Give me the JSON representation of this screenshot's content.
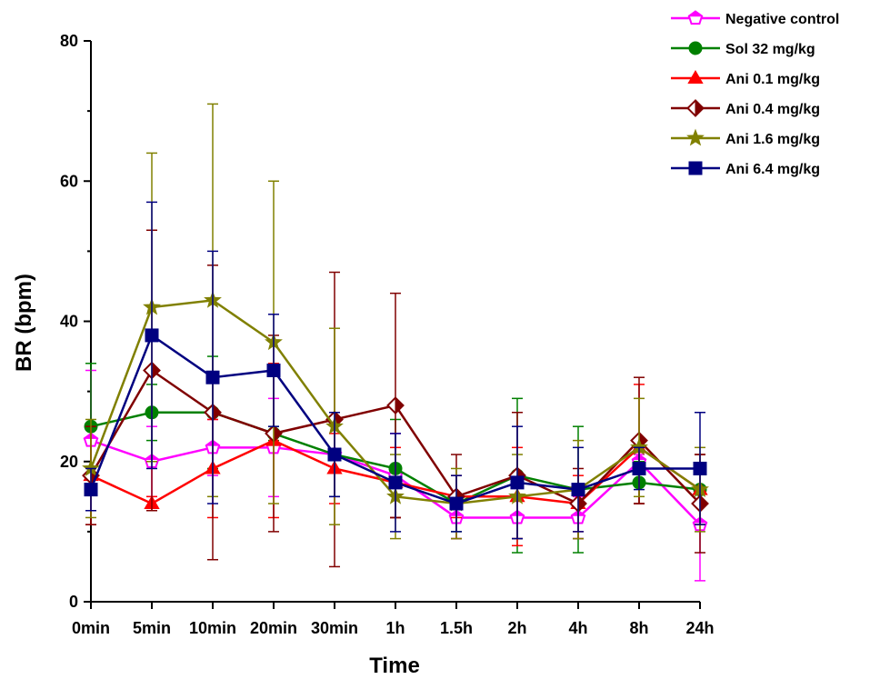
{
  "chart_data": {
    "type": "line",
    "title": "",
    "xlabel": "Time",
    "ylabel": "BR (bpm)",
    "ylim": [
      0,
      80
    ],
    "yticks": [
      "0",
      "20",
      "40",
      "60",
      "80"
    ],
    "categories": [
      "0min",
      "5min",
      "10min",
      "20min",
      "30min",
      "1h",
      "1.5h",
      "2h",
      "4h",
      "8h",
      "24h"
    ],
    "legend_position": "top-right",
    "grid": false,
    "series": [
      {
        "name": "Negative control",
        "color": "#ff00ff",
        "marker": "pentagon-open",
        "values": [
          23,
          20,
          22,
          22,
          21,
          18,
          12,
          12,
          12,
          20,
          11
        ],
        "err_upper": [
          33,
          25,
          26,
          29,
          27,
          24,
          15,
          15,
          15,
          21,
          14
        ],
        "err_lower": [
          13,
          15,
          18,
          15,
          15,
          12,
          9,
          9,
          9,
          19,
          3
        ]
      },
      {
        "name": "Sol 32 mg/kg",
        "color": "#008000",
        "marker": "circle",
        "values": [
          25,
          27,
          27,
          24,
          21,
          19,
          14,
          18,
          16,
          17,
          16
        ],
        "err_upper": [
          34,
          31,
          35,
          25,
          27,
          26,
          18,
          29,
          25,
          20,
          21
        ],
        "err_lower": [
          16,
          23,
          19,
          23,
          15,
          12,
          10,
          7,
          7,
          14,
          11
        ]
      },
      {
        "name": "Ani 0.1 mg/kg",
        "color": "#ff0000",
        "marker": "triangle",
        "values": [
          18,
          14,
          19,
          23,
          19,
          17,
          15,
          15,
          14,
          22,
          16
        ],
        "err_upper": [
          25,
          15,
          26,
          34,
          24,
          22,
          18,
          22,
          18,
          31,
          21
        ],
        "err_lower": [
          11,
          13,
          12,
          12,
          14,
          12,
          12,
          8,
          10,
          14,
          11
        ]
      },
      {
        "name": "Ani 0.4 mg/kg",
        "color": "#800000",
        "marker": "diamond-half",
        "values": [
          18,
          33,
          27,
          24,
          26,
          28,
          15,
          18,
          14,
          23,
          14
        ],
        "err_upper": [
          25,
          53,
          48,
          38,
          47,
          44,
          21,
          27,
          19,
          32,
          21
        ],
        "err_lower": [
          11,
          13,
          6,
          10,
          5,
          12,
          9,
          9,
          9,
          14,
          7
        ]
      },
      {
        "name": "Ani 1.6 mg/kg",
        "color": "#808000",
        "marker": "star",
        "values": [
          19,
          42,
          43,
          37,
          25,
          15,
          14,
          15,
          16,
          22,
          16
        ],
        "err_upper": [
          26,
          64,
          71,
          60,
          39,
          21,
          19,
          21,
          23,
          29,
          22
        ],
        "err_lower": [
          12,
          20,
          15,
          14,
          11,
          9,
          9,
          9,
          9,
          15,
          10
        ]
      },
      {
        "name": "Ani 6.4 mg/kg",
        "color": "#000080",
        "marker": "square",
        "values": [
          16,
          38,
          32,
          33,
          21,
          17,
          14,
          17,
          16,
          19,
          19
        ],
        "err_upper": [
          19,
          57,
          50,
          41,
          27,
          24,
          18,
          25,
          22,
          22,
          27
        ],
        "err_lower": [
          13,
          19,
          14,
          25,
          15,
          10,
          10,
          9,
          10,
          16,
          11
        ]
      }
    ]
  }
}
